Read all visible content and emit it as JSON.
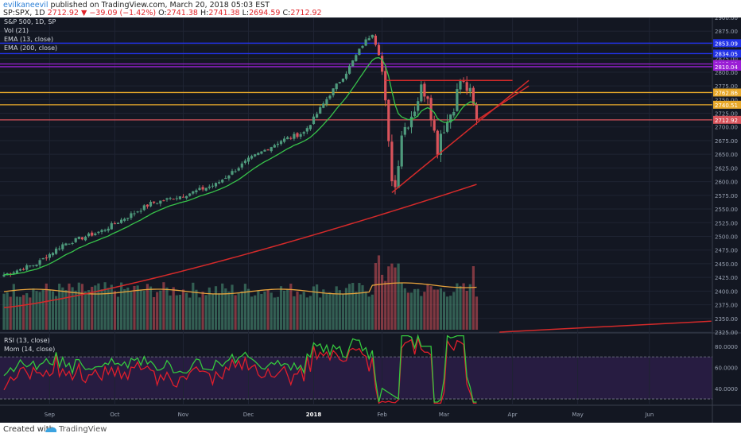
{
  "header": {
    "user": "evilkaneevil",
    "published": "published on TradingView.com, March 20, 2018 05:03 EST",
    "symbol": "SP:SPX, 1D",
    "last": "2712.92",
    "change": "−39.09 (−1.42%)",
    "ohlc": {
      "o_label": "O:",
      "o": "2741.38",
      "h_label": "H:",
      "h": "2741.38",
      "l_label": "L:",
      "l": "2694.59",
      "c_label": "C:",
      "c": "2712.92"
    }
  },
  "legend": {
    "title": "S&P 500, 1D, SP",
    "vol": "Vol (21)",
    "ema13": "EMA (13, close)",
    "ema200": "EMA (200, close)",
    "rsi": "RSI (13, close)",
    "mom": "Mom (14, close)"
  },
  "footer": {
    "created_with": "Created with",
    "brand": "TradingView"
  },
  "colors": {
    "background": "#131722",
    "up": "#4e9a7c",
    "down": "#d9535b",
    "ema13": "#37c24a",
    "ema200": "#d42a2a",
    "vol_ma": "#e8a33c",
    "rsi": "#35c73e",
    "mom": "#e01e2c",
    "blue_level": "#2232e6",
    "purple_level": "#9b1fd6",
    "orange_level": "#e8a92b"
  },
  "chart_data": {
    "type": "candlestick",
    "title": "S&P 500, 1D, SP",
    "price_axis": {
      "ylim": [
        2325,
        2900
      ],
      "ticks": [
        "2900.00",
        "2875.00",
        "2850.00",
        "2825.00",
        "2800.00",
        "2775.00",
        "2750.00",
        "2725.00",
        "2700.00",
        "2675.00",
        "2650.00",
        "2625.00",
        "2600.00",
        "2575.00",
        "2550.00",
        "2525.00",
        "2500.00",
        "2475.00",
        "2450.00",
        "2425.00",
        "2400.00",
        "2375.00",
        "2350.00",
        "2325.00"
      ]
    },
    "time_axis": {
      "labels": [
        "Sep",
        "Oct",
        "Nov",
        "Dec",
        "2018",
        "Feb",
        "Mar",
        "Apr",
        "May",
        "Jun"
      ],
      "label_day_index": [
        14,
        34,
        55,
        75,
        95,
        116,
        135,
        156,
        176,
        198
      ]
    },
    "ohlc_control_points": [
      {
        "day": 0,
        "price": 2430
      },
      {
        "day": 10,
        "price": 2450
      },
      {
        "day": 18,
        "price": 2485
      },
      {
        "day": 30,
        "price": 2510
      },
      {
        "day": 45,
        "price": 2560
      },
      {
        "day": 55,
        "price": 2575
      },
      {
        "day": 65,
        "price": 2595
      },
      {
        "day": 75,
        "price": 2640
      },
      {
        "day": 85,
        "price": 2675
      },
      {
        "day": 92,
        "price": 2690
      },
      {
        "day": 95,
        "price": 2715
      },
      {
        "day": 100,
        "price": 2760
      },
      {
        "day": 105,
        "price": 2800
      },
      {
        "day": 110,
        "price": 2850
      },
      {
        "day": 113,
        "price": 2872
      },
      {
        "day": 115,
        "price": 2835
      },
      {
        "day": 116,
        "price": 2800
      },
      {
        "day": 117,
        "price": 2740
      },
      {
        "day": 118,
        "price": 2665
      },
      {
        "day": 119,
        "price": 2610
      },
      {
        "day": 120,
        "price": 2590
      },
      {
        "day": 121,
        "price": 2640
      },
      {
        "day": 122,
        "price": 2690
      },
      {
        "day": 124,
        "price": 2710
      },
      {
        "day": 126,
        "price": 2735
      },
      {
        "day": 128,
        "price": 2770
      },
      {
        "day": 130,
        "price": 2760
      },
      {
        "day": 132,
        "price": 2690
      },
      {
        "day": 133,
        "price": 2660
      },
      {
        "day": 134,
        "price": 2690
      },
      {
        "day": 136,
        "price": 2710
      },
      {
        "day": 138,
        "price": 2740
      },
      {
        "day": 140,
        "price": 2785
      },
      {
        "day": 142,
        "price": 2770
      },
      {
        "day": 143,
        "price": 2760
      },
      {
        "day": 145,
        "price": 2712.92
      }
    ],
    "ema13_last": 2745,
    "ema200_last": 2595,
    "price_levels": [
      {
        "value": 2853.09,
        "label": "2853.09",
        "color": "#2232e6"
      },
      {
        "value": 2834.05,
        "label": "2834.05",
        "color": "#2232e6"
      },
      {
        "value": 2815.01,
        "label": "2815.01",
        "color": "#9b1fd6"
      },
      {
        "value": 2810.04,
        "label": "2810.04",
        "color": "#9b1fd6"
      },
      {
        "value": 2762.86,
        "label": "2762.86",
        "color": "#e8a92b"
      },
      {
        "value": 2740.51,
        "label": "2740.51",
        "color": "#e8a92b"
      },
      {
        "value": 2712.92,
        "label": "2712.92",
        "color": "#d9535b"
      }
    ],
    "drawings": {
      "resistance": {
        "from": {
          "day": 117,
          "price": 2785
        },
        "to": {
          "day": 156,
          "price": 2785
        }
      },
      "wedge_upper": {
        "from": {
          "day": 145,
          "price": 2712
        },
        "to": {
          "day": 161,
          "price": 2775
        }
      },
      "support": {
        "from": {
          "day": 119,
          "price": 2580
        },
        "to": {
          "day": 161,
          "price": 2785
        }
      },
      "ema200_projection": {
        "from": {
          "day": 152,
          "price": 2325
        },
        "to": {
          "day": 217,
          "price": 2345
        }
      }
    },
    "indicator_axis": {
      "ticks": [
        "80.0000",
        "60.0000",
        "40.0000"
      ],
      "levels": [
        70,
        30
      ]
    }
  }
}
